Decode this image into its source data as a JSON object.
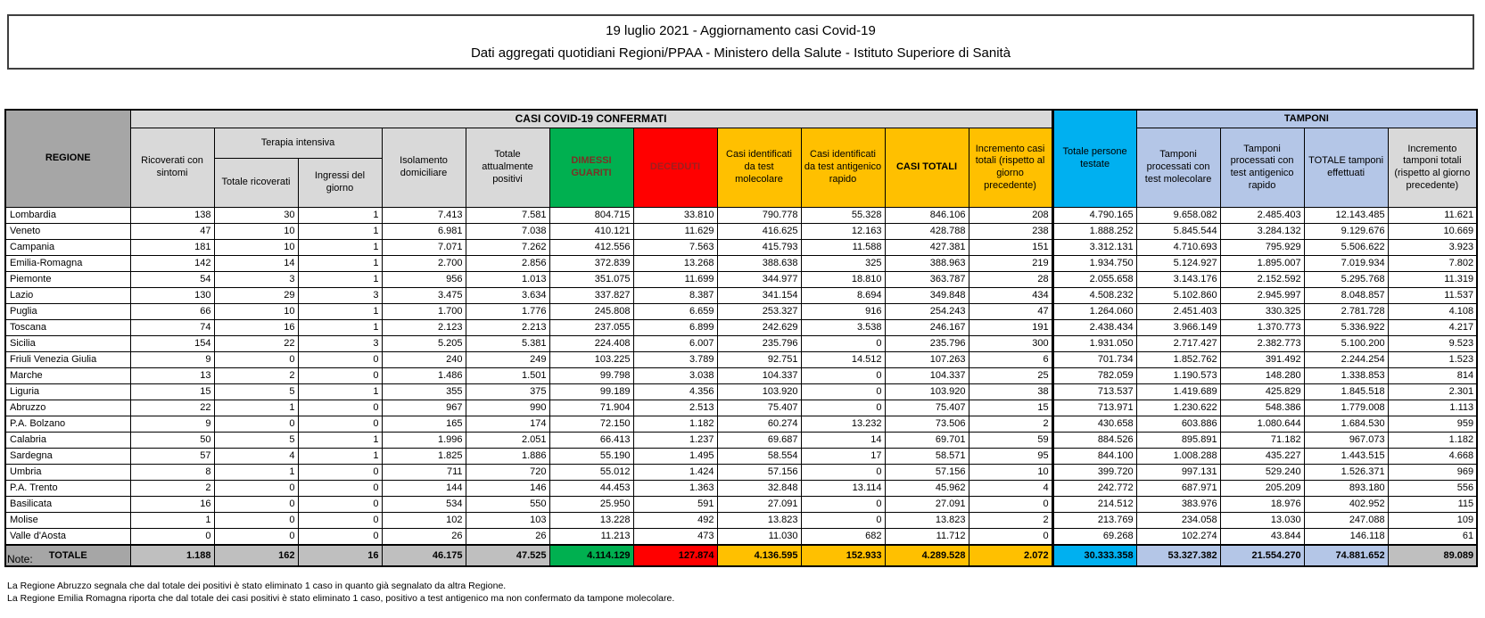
{
  "title": {
    "line1": "19 luglio 2021 - Aggiornamento casi Covid-19",
    "line2": "Dati aggregati quotidiani Regioni/PPAA - Ministero della Salute - Istituto Superiore di Sanità"
  },
  "table": {
    "corner_label": "REGIONE",
    "groups": {
      "casi": "CASI COVID-19 CONFERMATI",
      "terapia_intensiva": "Terapia intensiva",
      "persone_testate": "Totale persone testate",
      "tamponi": "TAMPONI"
    },
    "columns": [
      "Ricoverati con sintomi",
      "Totale ricoverati",
      "Ingressi del giorno",
      "Isolamento domiciliare",
      "Totale attualmente positivi",
      "DIMESSI GUARITI",
      "DECEDUTI",
      "Casi identificati da test molecolare",
      "Casi identificati da test antigenico rapido",
      "CASI TOTALI",
      "Incremento casi totali (rispetto al giorno precedente)",
      "Tamponi processati con test molecolare",
      "Tamponi processati con test antigenico rapido",
      "TOTALE tamponi effettuati",
      "Incremento tamponi totali (rispetto al giorno precedente)"
    ],
    "rows": [
      [
        "Lombardia",
        "138",
        "30",
        "1",
        "7.413",
        "7.581",
        "804.715",
        "33.810",
        "790.778",
        "55.328",
        "846.106",
        "208",
        "4.790.165",
        "9.658.082",
        "2.485.403",
        "12.143.485",
        "11.621"
      ],
      [
        "Veneto",
        "47",
        "10",
        "1",
        "6.981",
        "7.038",
        "410.121",
        "11.629",
        "416.625",
        "12.163",
        "428.788",
        "238",
        "1.888.252",
        "5.845.544",
        "3.284.132",
        "9.129.676",
        "10.669"
      ],
      [
        "Campania",
        "181",
        "10",
        "1",
        "7.071",
        "7.262",
        "412.556",
        "7.563",
        "415.793",
        "11.588",
        "427.381",
        "151",
        "3.312.131",
        "4.710.693",
        "795.929",
        "5.506.622",
        "3.923"
      ],
      [
        "Emilia-Romagna",
        "142",
        "14",
        "1",
        "2.700",
        "2.856",
        "372.839",
        "13.268",
        "388.638",
        "325",
        "388.963",
        "219",
        "1.934.750",
        "5.124.927",
        "1.895.007",
        "7.019.934",
        "7.802"
      ],
      [
        "Piemonte",
        "54",
        "3",
        "1",
        "956",
        "1.013",
        "351.075",
        "11.699",
        "344.977",
        "18.810",
        "363.787",
        "28",
        "2.055.658",
        "3.143.176",
        "2.152.592",
        "5.295.768",
        "11.319"
      ],
      [
        "Lazio",
        "130",
        "29",
        "3",
        "3.475",
        "3.634",
        "337.827",
        "8.387",
        "341.154",
        "8.694",
        "349.848",
        "434",
        "4.508.232",
        "5.102.860",
        "2.945.997",
        "8.048.857",
        "11.537"
      ],
      [
        "Puglia",
        "66",
        "10",
        "1",
        "1.700",
        "1.776",
        "245.808",
        "6.659",
        "253.327",
        "916",
        "254.243",
        "47",
        "1.264.060",
        "2.451.403",
        "330.325",
        "2.781.728",
        "4.108"
      ],
      [
        "Toscana",
        "74",
        "16",
        "1",
        "2.123",
        "2.213",
        "237.055",
        "6.899",
        "242.629",
        "3.538",
        "246.167",
        "191",
        "2.438.434",
        "3.966.149",
        "1.370.773",
        "5.336.922",
        "4.217"
      ],
      [
        "Sicilia",
        "154",
        "22",
        "3",
        "5.205",
        "5.381",
        "224.408",
        "6.007",
        "235.796",
        "0",
        "235.796",
        "300",
        "1.931.050",
        "2.717.427",
        "2.382.773",
        "5.100.200",
        "9.523"
      ],
      [
        "Friuli Venezia Giulia",
        "9",
        "0",
        "0",
        "240",
        "249",
        "103.225",
        "3.789",
        "92.751",
        "14.512",
        "107.263",
        "6",
        "701.734",
        "1.852.762",
        "391.492",
        "2.244.254",
        "1.523"
      ],
      [
        "Marche",
        "13",
        "2",
        "0",
        "1.486",
        "1.501",
        "99.798",
        "3.038",
        "104.337",
        "0",
        "104.337",
        "25",
        "782.059",
        "1.190.573",
        "148.280",
        "1.338.853",
        "814"
      ],
      [
        "Liguria",
        "15",
        "5",
        "1",
        "355",
        "375",
        "99.189",
        "4.356",
        "103.920",
        "0",
        "103.920",
        "38",
        "713.537",
        "1.419.689",
        "425.829",
        "1.845.518",
        "2.301"
      ],
      [
        "Abruzzo",
        "22",
        "1",
        "0",
        "967",
        "990",
        "71.904",
        "2.513",
        "75.407",
        "0",
        "75.407",
        "15",
        "713.971",
        "1.230.622",
        "548.386",
        "1.779.008",
        "1.113"
      ],
      [
        "P.A. Bolzano",
        "9",
        "0",
        "0",
        "165",
        "174",
        "72.150",
        "1.182",
        "60.274",
        "13.232",
        "73.506",
        "2",
        "430.658",
        "603.886",
        "1.080.644",
        "1.684.530",
        "959"
      ],
      [
        "Calabria",
        "50",
        "5",
        "1",
        "1.996",
        "2.051",
        "66.413",
        "1.237",
        "69.687",
        "14",
        "69.701",
        "59",
        "884.526",
        "895.891",
        "71.182",
        "967.073",
        "1.182"
      ],
      [
        "Sardegna",
        "57",
        "4",
        "1",
        "1.825",
        "1.886",
        "55.190",
        "1.495",
        "58.554",
        "17",
        "58.571",
        "95",
        "844.100",
        "1.008.288",
        "435.227",
        "1.443.515",
        "4.668"
      ],
      [
        "Umbria",
        "8",
        "1",
        "0",
        "711",
        "720",
        "55.012",
        "1.424",
        "57.156",
        "0",
        "57.156",
        "10",
        "399.720",
        "997.131",
        "529.240",
        "1.526.371",
        "969"
      ],
      [
        "P.A. Trento",
        "2",
        "0",
        "0",
        "144",
        "146",
        "44.453",
        "1.363",
        "32.848",
        "13.114",
        "45.962",
        "4",
        "242.772",
        "687.971",
        "205.209",
        "893.180",
        "556"
      ],
      [
        "Basilicata",
        "16",
        "0",
        "0",
        "534",
        "550",
        "25.950",
        "591",
        "27.091",
        "0",
        "27.091",
        "0",
        "214.512",
        "383.976",
        "18.976",
        "402.952",
        "115"
      ],
      [
        "Molise",
        "1",
        "0",
        "0",
        "102",
        "103",
        "13.228",
        "492",
        "13.823",
        "0",
        "13.823",
        "2",
        "213.769",
        "234.058",
        "13.030",
        "247.088",
        "109"
      ],
      [
        "Valle d'Aosta",
        "0",
        "0",
        "0",
        "26",
        "26",
        "11.213",
        "473",
        "11.030",
        "682",
        "11.712",
        "0",
        "69.268",
        "102.274",
        "43.844",
        "146.118",
        "61"
      ]
    ],
    "total_label": "TOTALE",
    "totals": [
      "1.188",
      "162",
      "16",
      "46.175",
      "47.525",
      "4.114.129",
      "127.874",
      "4.136.595",
      "152.933",
      "4.289.528",
      "2.072",
      "30.333.358",
      "53.327.382",
      "21.554.270",
      "74.881.652",
      "89.089"
    ]
  },
  "notes": {
    "heading": "Note:",
    "items": [
      "La Regione Abruzzo segnala che dal totale dei positivi è stato eliminato 1 caso in quanto già segnalato da altra Regione.",
      "La Regione Emilia Romagna riporta che dal totale dei casi positivi è stato eliminato 1 caso, positivo a test antigenico ma non confermato da tampone molecolare."
    ]
  },
  "colors": {
    "green": "#00B050",
    "red": "#FF0000",
    "yellow": "#FFC000",
    "cyan": "#00B0F0",
    "light_blue": "#B4C6E7",
    "header_gray": "#D9D9D9",
    "dark_gray": "#A6A6A6",
    "total_gray": "#BFBFBF"
  }
}
